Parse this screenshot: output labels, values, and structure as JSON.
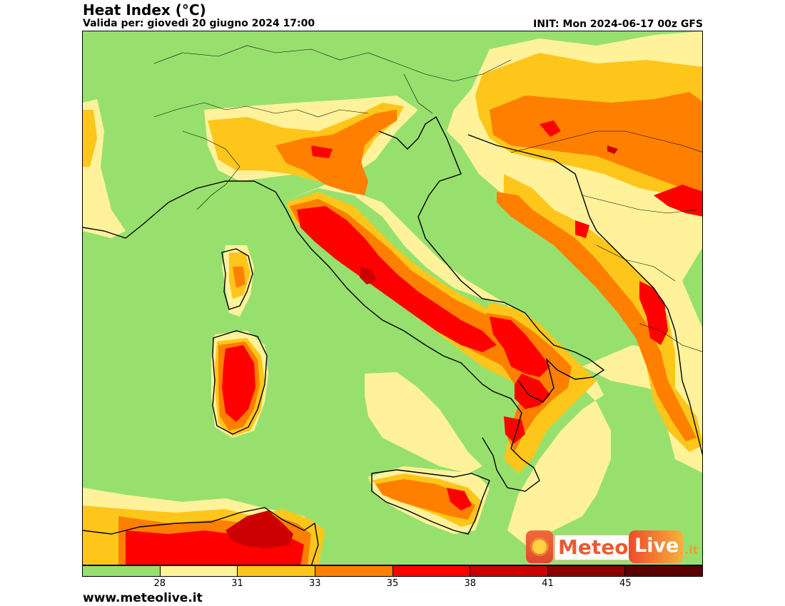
{
  "header": {
    "title": "Heat Index (°C)",
    "valid": "Valida per: giovedì 20 giugno 2024 17:00",
    "init": "INIT: Mon 2024-06-17 00z GFS"
  },
  "colorbar": {
    "colors": [
      "#98e06e",
      "#fff29b",
      "#fec61a",
      "#ff7f00",
      "#ff0000",
      "#cc0000",
      "#8b0000",
      "#5c0000"
    ],
    "labels": [
      "28",
      "31",
      "33",
      "35",
      "38",
      "41",
      "45"
    ]
  },
  "logo": {
    "sun": "sun-icon",
    "word1": "Meteo",
    "word2": "Live",
    "suffix": ".it"
  },
  "footer": {
    "url": "www.meteolive.it"
  }
}
